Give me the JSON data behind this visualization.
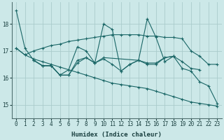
{
  "xlabel": "Humidex (Indice chaleur)",
  "background_color": "#cce8e8",
  "grid_color": "#aacccc",
  "line_color": "#1a6666",
  "xlim": [
    -0.5,
    23.5
  ],
  "ylim": [
    14.5,
    18.8
  ],
  "yticks": [
    15,
    16,
    17,
    18
  ],
  "xticks": [
    0,
    1,
    2,
    3,
    4,
    5,
    6,
    7,
    8,
    9,
    10,
    11,
    12,
    13,
    14,
    15,
    16,
    17,
    18,
    19,
    20,
    21,
    22,
    23
  ],
  "series": [
    {
      "x": [
        0,
        1,
        2,
        3,
        4,
        5,
        6,
        7,
        8,
        9,
        10,
        11,
        12,
        13,
        14,
        15,
        16,
        17,
        18,
        19,
        20,
        21,
        22,
        23
      ],
      "y": [
        18.5,
        17.1,
        16.65,
        16.45,
        16.45,
        16.1,
        16.1,
        16.55,
        16.75,
        16.55,
        18.0,
        17.8,
        16.25,
        16.5,
        16.65,
        18.2,
        17.5,
        16.6,
        16.8,
        16.35,
        16.25,
        15.85,
        15.7,
        15.05
      ]
    },
    {
      "x": [
        0,
        1,
        2,
        3,
        4,
        5,
        6,
        7,
        8,
        9,
        10,
        11,
        12,
        13,
        14,
        15,
        16,
        17,
        18,
        19,
        20,
        21,
        22,
        23
      ],
      "y": [
        17.1,
        16.85,
        17.0,
        17.1,
        17.2,
        17.25,
        17.35,
        17.4,
        17.45,
        17.5,
        17.55,
        17.6,
        17.6,
        17.6,
        17.6,
        17.55,
        17.55,
        17.5,
        17.5,
        17.45,
        17.0,
        16.8,
        16.5,
        16.5
      ]
    },
    {
      "x": [
        2,
        3,
        4,
        5,
        6,
        7,
        8,
        9,
        10,
        14,
        15,
        16,
        17,
        18
      ],
      "y": [
        16.65,
        16.45,
        16.45,
        16.1,
        16.1,
        16.65,
        16.75,
        16.55,
        16.75,
        16.65,
        16.5,
        16.5,
        16.75,
        16.8
      ]
    },
    {
      "x": [
        2,
        3,
        4,
        5,
        6,
        7,
        8,
        9,
        10,
        11,
        12,
        13,
        14,
        15,
        16,
        17,
        18,
        19,
        20,
        21
      ],
      "y": [
        16.65,
        16.45,
        16.45,
        16.1,
        16.3,
        17.15,
        17.0,
        16.55,
        16.7,
        16.5,
        16.25,
        16.5,
        16.65,
        16.55,
        16.55,
        16.75,
        16.8,
        16.6,
        16.35,
        16.3
      ]
    },
    {
      "x": [
        0,
        1,
        2,
        3,
        4,
        5,
        6,
        7,
        8,
        9,
        10,
        11,
        12,
        13,
        14,
        15,
        16,
        17,
        18,
        19,
        20,
        21,
        22,
        23
      ],
      "y": [
        17.1,
        16.85,
        16.7,
        16.6,
        16.5,
        16.4,
        16.3,
        16.2,
        16.1,
        16.0,
        15.9,
        15.8,
        15.75,
        15.7,
        15.65,
        15.6,
        15.5,
        15.4,
        15.3,
        15.2,
        15.1,
        15.05,
        15.0,
        14.95
      ]
    }
  ]
}
